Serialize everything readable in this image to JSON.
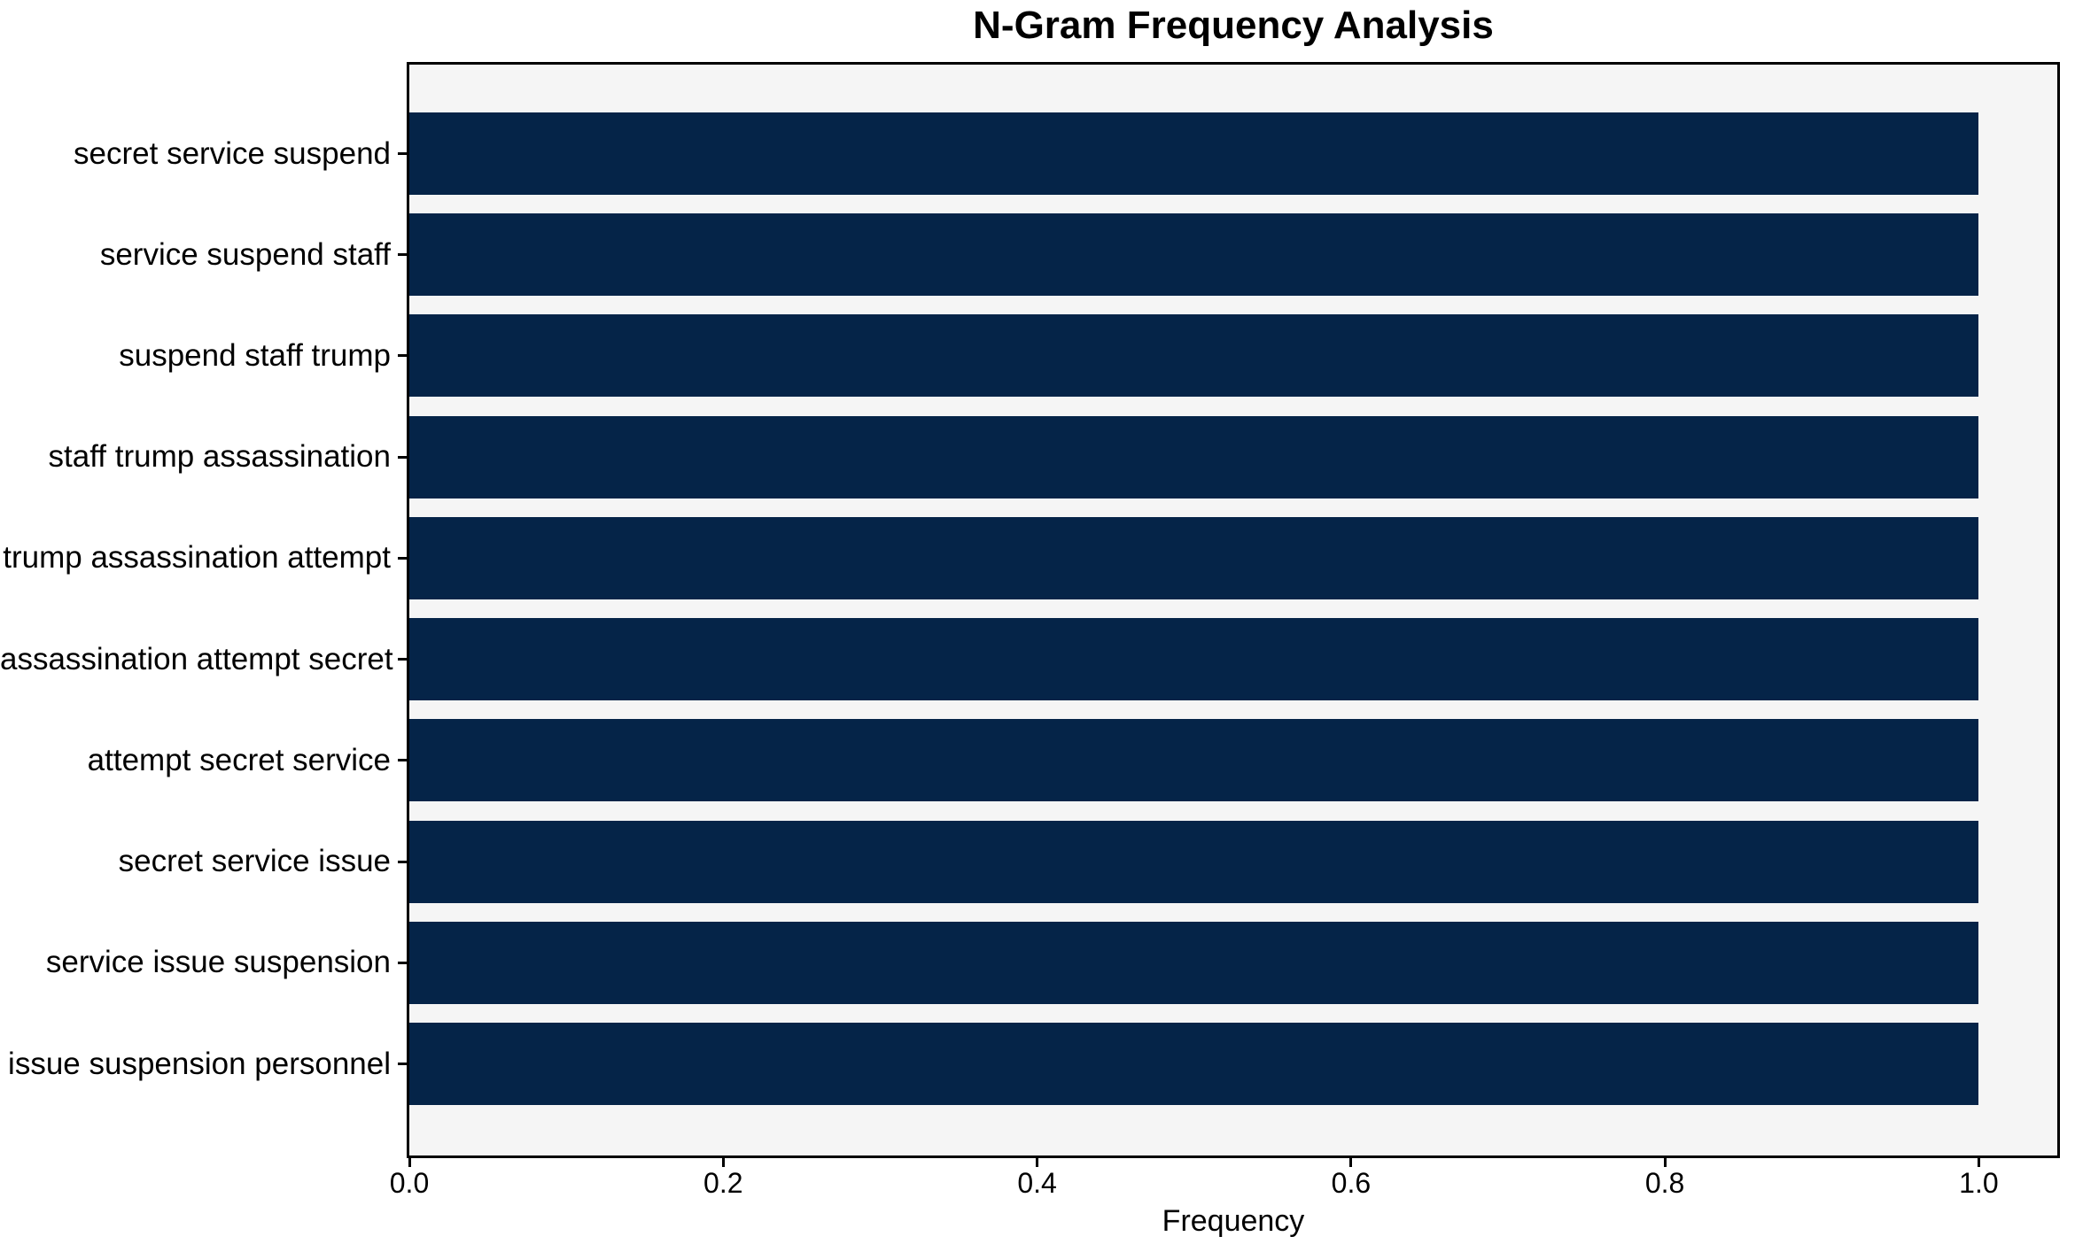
{
  "title": "N-Gram Frequency Analysis",
  "chart_data": {
    "type": "bar",
    "orientation": "horizontal",
    "title": "N-Gram Frequency Analysis",
    "xlabel": "Frequency",
    "ylabel": "",
    "categories": [
      "secret service suspend",
      "service suspend staff",
      "suspend staff trump",
      "staff trump assassination",
      "trump assassination attempt",
      "assassination attempt secret",
      "attempt secret service",
      "secret service issue",
      "service issue suspension",
      "issue suspension personnel"
    ],
    "values": [
      1.0,
      1.0,
      1.0,
      1.0,
      1.0,
      1.0,
      1.0,
      1.0,
      1.0,
      1.0
    ],
    "xlim": [
      0,
      1.05
    ],
    "x_ticks": [
      0.0,
      0.2,
      0.4,
      0.6,
      0.8,
      1.0
    ],
    "x_tick_labels": [
      "0.0",
      "0.2",
      "0.4",
      "0.6",
      "0.8",
      "1.0"
    ],
    "grid": false,
    "legend": null,
    "bar_color": "#052448",
    "plot_background": "#f5f5f5",
    "figure_background": "#ffffff"
  }
}
